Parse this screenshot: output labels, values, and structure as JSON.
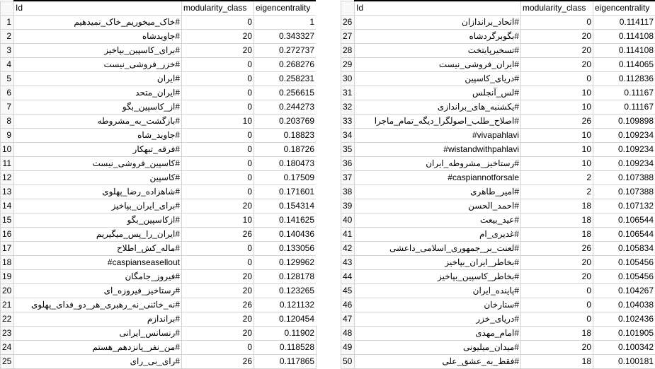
{
  "headers": {
    "left": [
      "Id",
      "modularity_class",
      "eigencentrality"
    ],
    "right": [
      "Id",
      "modularity_class",
      "eigencentrality"
    ]
  },
  "left_rows": [
    {
      "rn": "1",
      "id": "#خاک_میخوریم_خاک_نمیدهیم",
      "mod": "0",
      "eig": "1"
    },
    {
      "rn": "2",
      "id": "#جاویدشاه",
      "mod": "20",
      "eig": "0.343327"
    },
    {
      "rn": "3",
      "id": "#برای_کاسپین_بپاخیز",
      "mod": "20",
      "eig": "0.272737"
    },
    {
      "rn": "4",
      "id": "#خزر_فروشی_نیست",
      "mod": "0",
      "eig": "0.268276"
    },
    {
      "rn": "5",
      "id": "#ایران",
      "mod": "0",
      "eig": "0.258231"
    },
    {
      "rn": "6",
      "id": "#ایران_متحد",
      "mod": "0",
      "eig": "0.256615"
    },
    {
      "rn": "7",
      "id": "#از_کاسپین_بگو",
      "mod": "0",
      "eig": "0.244273"
    },
    {
      "rn": "8",
      "id": "#بازگشت_به_مشروطه",
      "mod": "10",
      "eig": "0.203769"
    },
    {
      "rn": "9",
      "id": "#جاوید_شاه",
      "mod": "0",
      "eig": "0.18823"
    },
    {
      "rn": "10",
      "id": "#فرقه_تبهکار",
      "mod": "0",
      "eig": "0.18726"
    },
    {
      "rn": "11",
      "id": "#کاسپین_فروشی_نیست",
      "mod": "0",
      "eig": "0.180473"
    },
    {
      "rn": "12",
      "id": "#کاسپین",
      "mod": "0",
      "eig": "0.17509"
    },
    {
      "rn": "13",
      "id": "#شاهزاده_رضا_پهلوی",
      "mod": "0",
      "eig": "0.171601"
    },
    {
      "rn": "14",
      "id": "#برای_ایران_بپاخیز",
      "mod": "20",
      "eig": "0.154314"
    },
    {
      "rn": "15",
      "id": "#ازکاسپین_بگو",
      "mod": "10",
      "eig": "0.141625"
    },
    {
      "rn": "16",
      "id": "#ایران_را_پس_میگیریم",
      "mod": "26",
      "eig": "0.140436"
    },
    {
      "rn": "17",
      "id": "#ماله_کش_اطلاح",
      "mod": "0",
      "eig": "0.133056"
    },
    {
      "rn": "18",
      "id": "#caspianseasellout",
      "mod": "0",
      "eig": "0.129962"
    },
    {
      "rn": "19",
      "id": "#فیروز_جامگان",
      "mod": "20",
      "eig": "0.128178"
    },
    {
      "rn": "20",
      "id": "#رستاخیز_فیروزه_ای",
      "mod": "20",
      "eig": "0.123265"
    },
    {
      "rn": "21",
      "id": "#نه_خائنی_نه_رهبری_هر_دو_فدای_پهلوی",
      "mod": "26",
      "eig": "0.121132"
    },
    {
      "rn": "22",
      "id": "#براندازم",
      "mod": "20",
      "eig": "0.120454"
    },
    {
      "rn": "23",
      "id": "#رنسانس_ایرانی",
      "mod": "20",
      "eig": "0.11902"
    },
    {
      "rn": "24",
      "id": "#من_نفر_پانزدهم_هستم",
      "mod": "0",
      "eig": "0.118528"
    },
    {
      "rn": "25",
      "id": "#رای_بی_رای",
      "mod": "26",
      "eig": "0.117865"
    }
  ],
  "right_rows": [
    {
      "rn": "26",
      "id": "#اتحاد_براندازان",
      "mod": "0",
      "eig": "0.114117"
    },
    {
      "rn": "27",
      "id": "#بگوبرگردشاه",
      "mod": "20",
      "eig": "0.114108"
    },
    {
      "rn": "28",
      "id": "#تسخیرپایتخت",
      "mod": "20",
      "eig": "0.114108"
    },
    {
      "rn": "29",
      "id": "#ایران_فروشی_نیست",
      "mod": "20",
      "eig": "0.114065"
    },
    {
      "rn": "30",
      "id": "#دریای_کاسپین",
      "mod": "0",
      "eig": "0.112836"
    },
    {
      "rn": "31",
      "id": "#لس_آنجلس",
      "mod": "10",
      "eig": "0.11167"
    },
    {
      "rn": "32",
      "id": "#یکشنبه_های_براندازی",
      "mod": "10",
      "eig": "0.11167"
    },
    {
      "rn": "33",
      "id": "#اصلاح_طلب_اصولگرا_دیگه_تمام_ماجرا",
      "mod": "26",
      "eig": "0.109898"
    },
    {
      "rn": "34",
      "id": "#vivapahlavi",
      "mod": "10",
      "eig": "0.109234"
    },
    {
      "rn": "35",
      "id": "#wistandwithpahlavi",
      "mod": "10",
      "eig": "0.109234"
    },
    {
      "rn": "36",
      "id": "#رستاخیز_مشروطه_ایران",
      "mod": "10",
      "eig": "0.109234"
    },
    {
      "rn": "37",
      "id": "#caspiannotforsale",
      "mod": "2",
      "eig": "0.107388"
    },
    {
      "rn": "38",
      "id": "#امیر_طاهری",
      "mod": "2",
      "eig": "0.107388"
    },
    {
      "rn": "39",
      "id": "#احمد_الحسن",
      "mod": "18",
      "eig": "0.107132"
    },
    {
      "rn": "40",
      "id": "#عید_بیعت",
      "mod": "18",
      "eig": "0.106544"
    },
    {
      "rn": "41",
      "id": "#غدیری_ام",
      "mod": "18",
      "eig": "0.106544"
    },
    {
      "rn": "42",
      "id": "#لعنت_بر_جمهوری_اسلامی_داعشی",
      "mod": "26",
      "eig": "0.105834"
    },
    {
      "rn": "43",
      "id": "#بخاطر_ایران_بپاخیز",
      "mod": "20",
      "eig": "0.105456"
    },
    {
      "rn": "44",
      "id": "#بخاطر_کاسپین_بپاخیز",
      "mod": "20",
      "eig": "0.105456"
    },
    {
      "rn": "45",
      "id": "#پاینده_ایران",
      "mod": "0",
      "eig": "0.104267"
    },
    {
      "rn": "46",
      "id": "#ستارخان",
      "mod": "0",
      "eig": "0.104038"
    },
    {
      "rn": "47",
      "id": "#دریای_خزر",
      "mod": "0",
      "eig": "0.102436"
    },
    {
      "rn": "48",
      "id": "#امام_مهدی",
      "mod": "18",
      "eig": "0.101905"
    },
    {
      "rn": "49",
      "id": "#میدان_میلیونی",
      "mod": "20",
      "eig": "0.100342"
    },
    {
      "rn": "50",
      "id": "#فقط_به_عشق_علی",
      "mod": "18",
      "eig": "0.100181"
    }
  ]
}
